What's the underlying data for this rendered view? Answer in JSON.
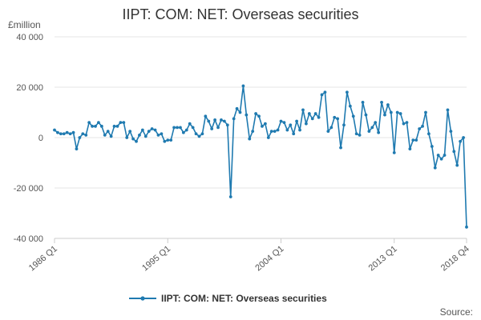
{
  "chart_data": {
    "type": "line",
    "title": "IIPT: COM: NET: Overseas securities",
    "unit_label": "£million",
    "source_label": "Source:",
    "xlabel": "",
    "ylabel": "",
    "ylim": [
      -40000,
      40000
    ],
    "yticks": [
      -40000,
      -20000,
      0,
      20000,
      40000
    ],
    "ytick_labels": [
      "-40 000",
      "-20 000",
      "0",
      "20 000",
      "40 000"
    ],
    "xtick_labels": [
      "1986 Q1",
      "1995 Q1",
      "2004 Q1",
      "2013 Q1",
      "2018 Q4"
    ],
    "xtick_positions": [
      "1986 Q1",
      "1995 Q1",
      "2004 Q1",
      "2013 Q1",
      "2018 Q4"
    ],
    "grid": true,
    "legend_position": "bottom",
    "series": [
      {
        "name": "IIPT: COM: NET: Overseas securities",
        "color": "#1f7ab0",
        "x": [
          "1986 Q1",
          "1986 Q2",
          "1986 Q3",
          "1986 Q4",
          "1987 Q1",
          "1987 Q2",
          "1987 Q3",
          "1987 Q4",
          "1988 Q1",
          "1988 Q2",
          "1988 Q3",
          "1988 Q4",
          "1989 Q1",
          "1989 Q2",
          "1989 Q3",
          "1989 Q4",
          "1990 Q1",
          "1990 Q2",
          "1990 Q3",
          "1990 Q4",
          "1991 Q1",
          "1991 Q2",
          "1991 Q3",
          "1991 Q4",
          "1992 Q1",
          "1992 Q2",
          "1992 Q3",
          "1992 Q4",
          "1993 Q1",
          "1993 Q2",
          "1993 Q3",
          "1993 Q4",
          "1994 Q1",
          "1994 Q2",
          "1994 Q3",
          "1994 Q4",
          "1995 Q1",
          "1995 Q2",
          "1995 Q3",
          "1995 Q4",
          "1996 Q1",
          "1996 Q2",
          "1996 Q3",
          "1996 Q4",
          "1997 Q1",
          "1997 Q2",
          "1997 Q3",
          "1997 Q4",
          "1998 Q1",
          "1998 Q2",
          "1998 Q3",
          "1998 Q4",
          "1999 Q1",
          "1999 Q2",
          "1999 Q3",
          "1999 Q4",
          "2000 Q1",
          "2000 Q2",
          "2000 Q3",
          "2000 Q4",
          "2001 Q1",
          "2001 Q2",
          "2001 Q3",
          "2001 Q4",
          "2002 Q1",
          "2002 Q2",
          "2002 Q3",
          "2002 Q4",
          "2003 Q1",
          "2003 Q2",
          "2003 Q3",
          "2003 Q4",
          "2004 Q1",
          "2004 Q2",
          "2004 Q3",
          "2004 Q4",
          "2005 Q1",
          "2005 Q2",
          "2005 Q3",
          "2005 Q4",
          "2006 Q1",
          "2006 Q2",
          "2006 Q3",
          "2006 Q4",
          "2007 Q1",
          "2007 Q2",
          "2007 Q3",
          "2007 Q4",
          "2008 Q1",
          "2008 Q2",
          "2008 Q3",
          "2008 Q4",
          "2009 Q1",
          "2009 Q2",
          "2009 Q3",
          "2009 Q4",
          "2010 Q1",
          "2010 Q2",
          "2010 Q3",
          "2010 Q4",
          "2011 Q1",
          "2011 Q2",
          "2011 Q3",
          "2011 Q4",
          "2012 Q1",
          "2012 Q2",
          "2012 Q3",
          "2012 Q4",
          "2013 Q1",
          "2013 Q2",
          "2013 Q3",
          "2013 Q4",
          "2014 Q1",
          "2014 Q2",
          "2014 Q3",
          "2014 Q4",
          "2015 Q1",
          "2015 Q2",
          "2015 Q3",
          "2015 Q4",
          "2016 Q1",
          "2016 Q2",
          "2016 Q3",
          "2016 Q4",
          "2017 Q1",
          "2017 Q2",
          "2017 Q3",
          "2017 Q4",
          "2018 Q1",
          "2018 Q2",
          "2018 Q3",
          "2018 Q4"
        ],
        "values": [
          3000,
          2000,
          1500,
          1500,
          2000,
          1500,
          2000,
          -4500,
          0,
          1500,
          1000,
          6000,
          4500,
          4500,
          6000,
          4500,
          1000,
          2500,
          500,
          4500,
          4500,
          6000,
          6000,
          0,
          2500,
          -500,
          -1500,
          1000,
          3000,
          500,
          2500,
          3500,
          3000,
          1000,
          1500,
          -1500,
          -1000,
          -1000,
          4000,
          4000,
          4000,
          2000,
          3000,
          5500,
          4000,
          1500,
          500,
          1500,
          8500,
          6500,
          3500,
          7000,
          4000,
          7000,
          6500,
          5000,
          -23500,
          7500,
          11500,
          10000,
          20500,
          9000,
          -500,
          2500,
          9500,
          8500,
          4500,
          5500,
          0,
          2500,
          2500,
          3000,
          6500,
          6000,
          3000,
          5000,
          1500,
          6500,
          3000,
          11000,
          5500,
          9500,
          7500,
          9500,
          8000,
          17000,
          18000,
          2500,
          4000,
          8000,
          7500,
          -4000,
          5000,
          18000,
          12500,
          8500,
          1500,
          1000,
          14000,
          9000,
          2500,
          4000,
          6000,
          2000,
          14000,
          9000,
          13000,
          10000,
          -6000,
          10000,
          9500,
          5500,
          6000,
          -4500,
          -1000,
          -1000,
          3500,
          4500,
          10000,
          1500,
          -3500,
          -12000,
          -7000,
          -8500,
          -7000,
          11000,
          2500,
          -5500,
          -11000,
          -1500,
          0,
          -35500
        ]
      }
    ]
  }
}
